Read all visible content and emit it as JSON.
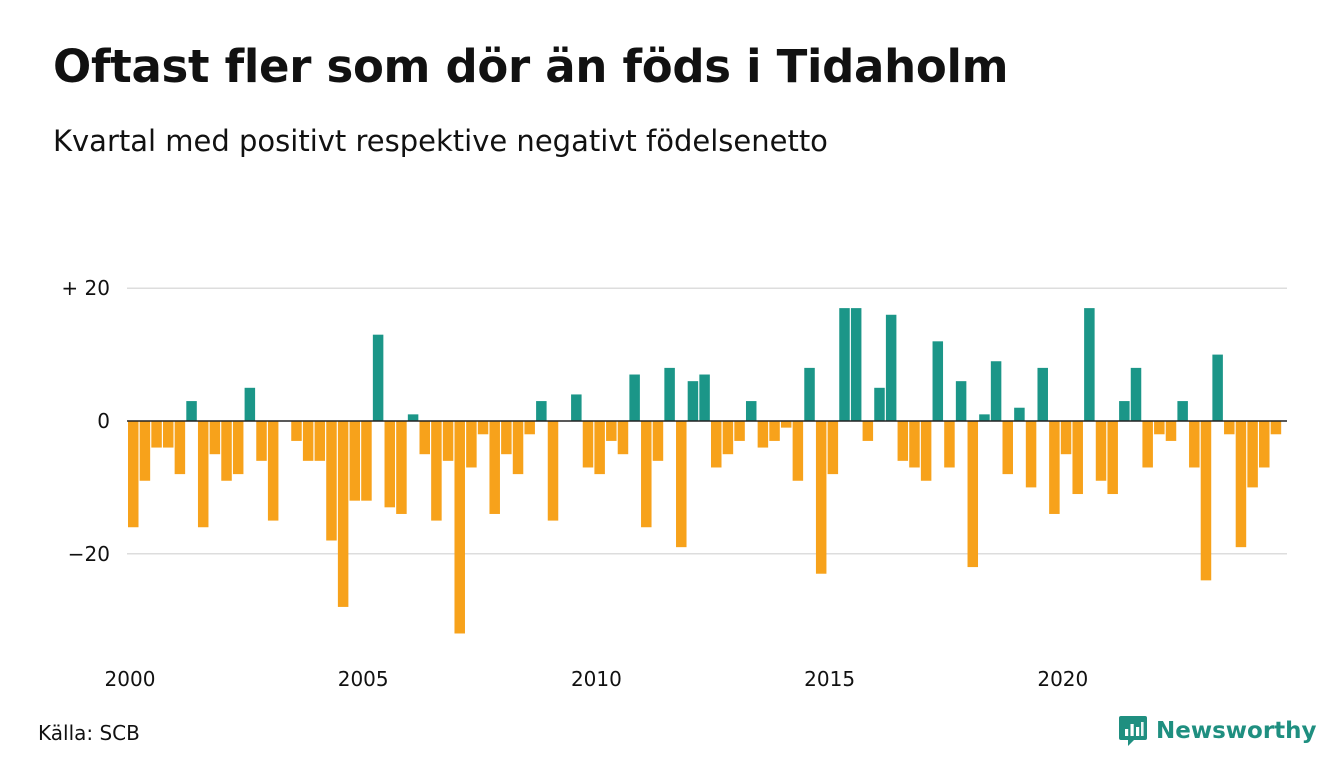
{
  "title": "Oftast fler som dör än föds i Tidaholm",
  "subtitle": "Kvartal med positivt respektive negativt födelsenetto",
  "source": "Källa: SCB",
  "brand": {
    "name": "Newsworthy",
    "icon": "newsworthy-logo-icon"
  },
  "colors": {
    "positive": "#1b9688",
    "negative": "#f7a21b",
    "grid": "#dddddd",
    "zero_line": "#222222"
  },
  "chart_data": {
    "type": "bar",
    "x_start": "2000 Q1",
    "x_step": "quarter",
    "ylim": [
      -34,
      20
    ],
    "y_ticks": [
      20,
      0,
      -20
    ],
    "y_tick_labels": [
      "+ 20",
      "0",
      "−20"
    ],
    "x_tick_labels": [
      "2000",
      "2005",
      "2010",
      "2015",
      "2020"
    ],
    "grid": true,
    "values": [
      -16,
      -9,
      -4,
      -4,
      -8,
      3,
      -16,
      -5,
      -9,
      -8,
      5,
      -6,
      -15,
      0,
      -3,
      -6,
      -6,
      -18,
      -28,
      -12,
      -12,
      13,
      -13,
      -14,
      1,
      -5,
      -15,
      -6,
      -32,
      -7,
      -2,
      -14,
      -5,
      -8,
      -2,
      3,
      -15,
      0,
      4,
      -7,
      -8,
      -3,
      -5,
      7,
      -16,
      -6,
      8,
      -19,
      6,
      7,
      -7,
      -5,
      -3,
      3,
      -4,
      -3,
      -1,
      -9,
      8,
      -23,
      -8,
      17,
      17,
      -3,
      5,
      16,
      -6,
      -7,
      -9,
      12,
      -7,
      6,
      -22,
      1,
      9,
      -8,
      2,
      -10,
      8,
      -14,
      -5,
      -11,
      17,
      -9,
      -11,
      3,
      8,
      -7,
      -2,
      -3,
      3,
      -7,
      -24,
      10,
      -2,
      -19,
      -10,
      -7,
      -2
    ]
  }
}
